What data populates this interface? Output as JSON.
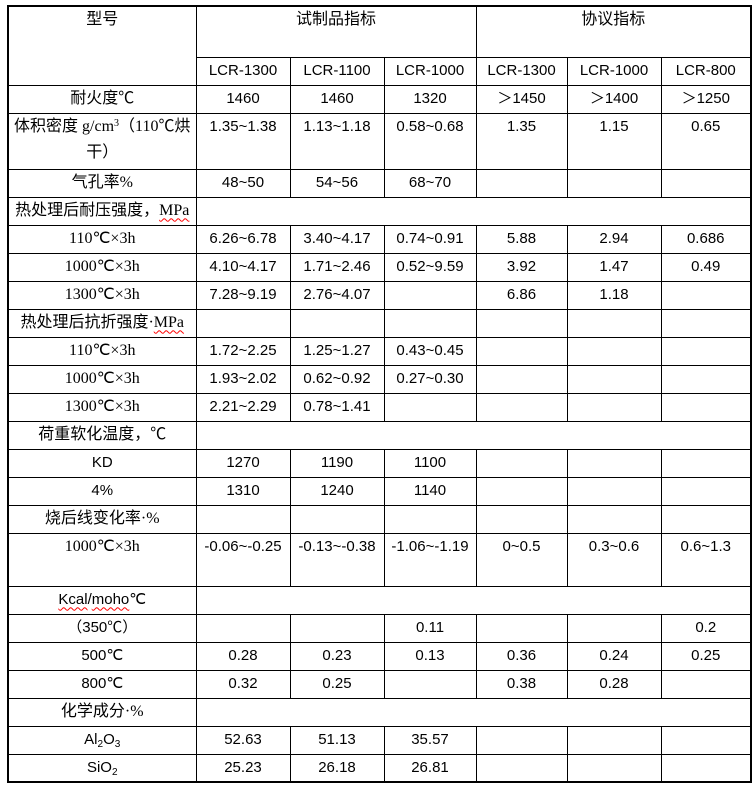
{
  "colors": {
    "background": "#ffffff",
    "border": "#000000",
    "text": "#000000",
    "spellcheck_underline": "#ff0000"
  },
  "table": {
    "header": {
      "model": "型号",
      "trial": "试制品指标",
      "agreement": "协议指标",
      "columns": [
        "LCR-1300",
        "LCR-1100",
        "LCR-1000",
        "LCR-1300",
        "LCR-1000",
        "LCR-800"
      ]
    },
    "rows": [
      {
        "name": "row-refractoriness",
        "label_segments": [
          {
            "t": "耐火度℃"
          }
        ],
        "values": [
          "1460",
          "1460",
          "1320",
          "＞1450",
          "＞1400",
          "＞1250"
        ]
      },
      {
        "name": "row-bulk-density",
        "h": 56,
        "label_segments": [
          {
            "t": "体积密度 g/cm"
          },
          {
            "t": "3",
            "sup": true
          },
          {
            "t": "（110℃烘干）"
          }
        ],
        "values": [
          "1.35~1.38",
          "1.13~1.18",
          "0.58~0.68",
          "1.35",
          "1.15",
          "0.65"
        ]
      },
      {
        "name": "row-porosity",
        "label_segments": [
          {
            "t": "气孔率%"
          }
        ],
        "values": [
          "48~50",
          "54~56",
          "68~70",
          "",
          "",
          ""
        ]
      },
      {
        "name": "row-section-compressive-strength",
        "merged": true,
        "label_segments": [
          {
            "t": "热处理后耐压强度，"
          },
          {
            "t": "MPa",
            "wavy": true
          }
        ]
      },
      {
        "name": "row-compressive-110",
        "latin": "serif",
        "label_segments": [
          {
            "t": "110℃×3h"
          }
        ],
        "values": [
          "6.26~6.78",
          "3.40~4.17",
          "0.74~0.91",
          "5.88",
          "2.94",
          "0.686"
        ]
      },
      {
        "name": "row-compressive-1000",
        "latin": "serif",
        "label_segments": [
          {
            "t": "1000℃×3h"
          }
        ],
        "values": [
          "4.10~4.17",
          "1.71~2.46",
          "0.52~9.59",
          "3.92",
          "1.47",
          "0.49"
        ]
      },
      {
        "name": "row-compressive-1300",
        "latin": "serif",
        "label_segments": [
          {
            "t": "1300℃×3h"
          }
        ],
        "values": [
          "7.28~9.19",
          "2.76~4.07",
          "",
          "6.86",
          "1.18",
          ""
        ]
      },
      {
        "name": "row-section-flexural-strength",
        "label_segments": [
          {
            "t": "热处理后抗折强度·"
          },
          {
            "t": "MPa",
            "wavy": true
          }
        ],
        "values": [
          "",
          "",
          "",
          "",
          "",
          ""
        ]
      },
      {
        "name": "row-flexural-110",
        "latin": "serif",
        "label_segments": [
          {
            "t": "110℃×3h"
          }
        ],
        "values": [
          "1.72~2.25",
          "1.25~1.27",
          "0.43~0.45",
          "",
          "",
          ""
        ]
      },
      {
        "name": "row-flexural-1000",
        "latin": "serif",
        "label_segments": [
          {
            "t": "1000℃×3h"
          }
        ],
        "values": [
          "1.93~2.02",
          "0.62~0.92",
          "0.27~0.30",
          "",
          "",
          ""
        ]
      },
      {
        "name": "row-flexural-1300",
        "latin": "serif",
        "label_segments": [
          {
            "t": "1300℃×3h"
          }
        ],
        "values": [
          "2.21~2.29",
          "0.78~1.41",
          "",
          "",
          "",
          ""
        ]
      },
      {
        "name": "row-section-softening-temp",
        "merged": true,
        "label_segments": [
          {
            "t": "荷重软化温度，℃"
          }
        ]
      },
      {
        "name": "row-kd",
        "sans": true,
        "label_segments": [
          {
            "t": "KD"
          }
        ],
        "values": [
          "1270",
          "1190",
          "1100",
          "",
          "",
          ""
        ]
      },
      {
        "name": "row-4pct",
        "sans": true,
        "label_segments": [
          {
            "t": "4%"
          }
        ],
        "values": [
          "1310",
          "1240",
          "1140",
          "",
          "",
          ""
        ]
      },
      {
        "name": "row-section-linear-change",
        "label_segments": [
          {
            "t": "烧后线变化率·%"
          }
        ],
        "values": [
          "",
          "",
          "",
          "",
          "",
          ""
        ]
      },
      {
        "name": "row-linear-change-1000",
        "latin": "serif",
        "h": 53,
        "label_segments": [
          {
            "t": "1000℃×3h"
          }
        ],
        "values": [
          "-0.06~-0.25",
          "-0.13~-0.38",
          "-1.06~-1.19",
          "0~0.5",
          "0.3~0.6",
          "0.6~1.3"
        ]
      },
      {
        "name": "row-section-thermal-conductivity",
        "merged": true,
        "sans": true,
        "label_segments": [
          {
            "t": "Kcal",
            "wavy": true
          },
          {
            "t": "/"
          },
          {
            "t": "moho",
            "wavy": true
          },
          {
            "t": "℃"
          }
        ]
      },
      {
        "name": "row-350",
        "sans": true,
        "label_segments": [
          {
            "t": "（350℃）"
          }
        ],
        "values": [
          "",
          "",
          "0.11",
          "",
          "",
          "0.2"
        ]
      },
      {
        "name": "row-500",
        "sans": true,
        "label_segments": [
          {
            "t": "500℃"
          }
        ],
        "values": [
          "0.28",
          "0.23",
          "0.13",
          "0.36",
          "0.24",
          "0.25"
        ]
      },
      {
        "name": "row-800",
        "sans": true,
        "label_segments": [
          {
            "t": "800℃"
          }
        ],
        "values": [
          "0.32",
          "0.25",
          "",
          "0.38",
          "0.28",
          ""
        ]
      },
      {
        "name": "row-section-chemical-composition",
        "merged": true,
        "label_segments": [
          {
            "t": "化学成分·%"
          }
        ]
      },
      {
        "name": "row-al2o3",
        "sans": true,
        "label_segments": [
          {
            "t": "Al"
          },
          {
            "t": "2",
            "sub": true
          },
          {
            "t": "O"
          },
          {
            "t": "3",
            "sub": true
          }
        ],
        "values": [
          "52.63",
          "51.13",
          "35.57",
          "",
          "",
          ""
        ]
      },
      {
        "name": "row-sio2",
        "sans": true,
        "label_segments": [
          {
            "t": "SiO"
          },
          {
            "t": "2",
            "sub": true
          }
        ],
        "values": [
          "25.23",
          "26.18",
          "26.81",
          "",
          "",
          ""
        ]
      }
    ]
  }
}
